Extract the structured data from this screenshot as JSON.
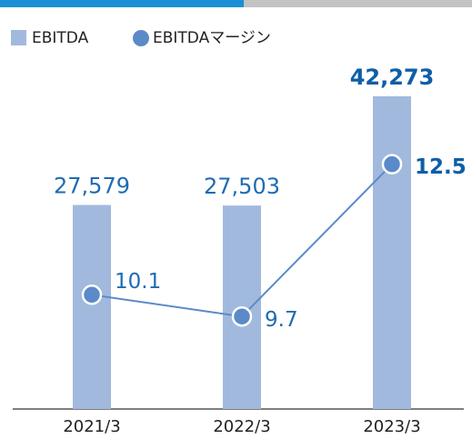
{
  "chart_data": {
    "type": "bar-line",
    "categories": [
      "2021/3",
      "2022/3",
      "2023/3"
    ],
    "series": [
      {
        "name": "EBITDA",
        "color": "#a2b9de",
        "values": [
          27579,
          27503,
          42273
        ],
        "value_labels": [
          "27,579",
          "27,503",
          "42,273"
        ]
      },
      {
        "name": "EBITDAマージン",
        "color": "#5b8ac8",
        "values": [
          10.1,
          9.7,
          12.5
        ],
        "axis": "y2"
      }
    ],
    "ylim": [
      0,
      50000
    ],
    "y2lim": [
      8,
      14.8
    ]
  }
}
